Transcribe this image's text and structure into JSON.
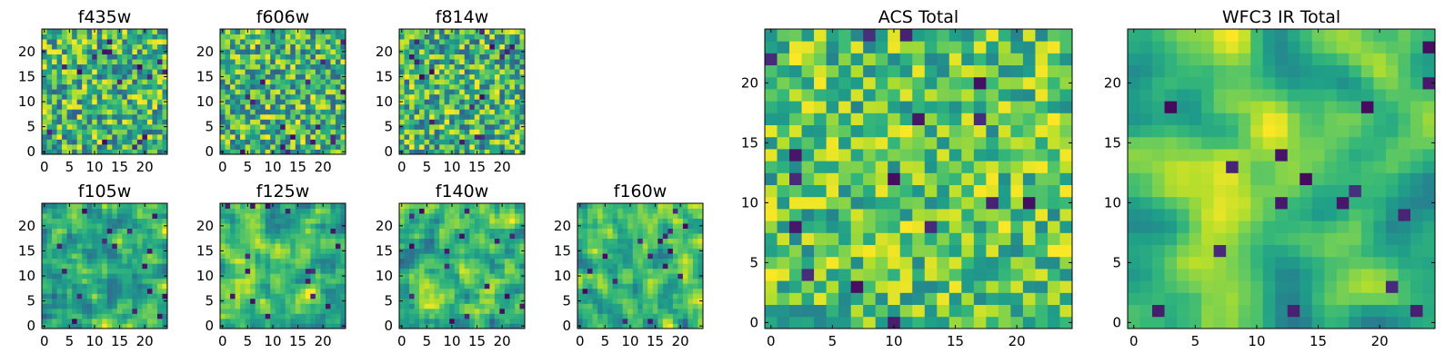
{
  "chart_data": [
    {
      "type": "heatmap",
      "title": "f435w",
      "x_ticks": [
        "0",
        "5",
        "10",
        "15",
        "20"
      ],
      "y_ticks": [
        "0",
        "5",
        "10",
        "15",
        "20"
      ],
      "xlim": [
        -0.5,
        24.5
      ],
      "ylim": [
        -0.5,
        24.5
      ],
      "grid": false,
      "rows": 25,
      "cols": 25,
      "seed": 11,
      "smooth": 0,
      "texture": "noise",
      "colormap": "viridis",
      "color_range": [
        0.3,
        1.0
      ]
    },
    {
      "type": "heatmap",
      "title": "f606w",
      "x_ticks": [
        "0",
        "5",
        "10",
        "15",
        "20"
      ],
      "y_ticks": [
        "0",
        "5",
        "10",
        "15",
        "20"
      ],
      "xlim": [
        -0.5,
        24.5
      ],
      "ylim": [
        -0.5,
        24.5
      ],
      "grid": false,
      "rows": 25,
      "cols": 25,
      "seed": 23,
      "smooth": 0,
      "texture": "noise",
      "colormap": "viridis",
      "color_range": [
        0.3,
        1.0
      ]
    },
    {
      "type": "heatmap",
      "title": "f814w",
      "x_ticks": [
        "0",
        "5",
        "10",
        "15",
        "20"
      ],
      "y_ticks": [
        "0",
        "5",
        "10",
        "15",
        "20"
      ],
      "xlim": [
        -0.5,
        24.5
      ],
      "ylim": [
        -0.5,
        24.5
      ],
      "grid": false,
      "rows": 25,
      "cols": 25,
      "seed": 37,
      "smooth": 0,
      "texture": "noise",
      "colormap": "viridis",
      "color_range": [
        0.3,
        1.0
      ]
    },
    {
      "type": "heatmap",
      "title": "f105w",
      "x_ticks": [
        "0",
        "5",
        "10",
        "15",
        "20"
      ],
      "y_ticks": [
        "0",
        "5",
        "10",
        "15",
        "20"
      ],
      "xlim": [
        -0.5,
        24.5
      ],
      "ylim": [
        -0.5,
        24.5
      ],
      "grid": false,
      "rows": 25,
      "cols": 25,
      "seed": 41,
      "smooth": 1,
      "texture": "smoothed-noise",
      "colormap": "viridis",
      "color_range": [
        0.3,
        1.0
      ]
    },
    {
      "type": "heatmap",
      "title": "f125w",
      "x_ticks": [
        "0",
        "5",
        "10",
        "15",
        "20"
      ],
      "y_ticks": [
        "0",
        "5",
        "10",
        "15",
        "20"
      ],
      "xlim": [
        -0.5,
        24.5
      ],
      "ylim": [
        -0.5,
        24.5
      ],
      "grid": false,
      "rows": 25,
      "cols": 25,
      "seed": 53,
      "smooth": 1,
      "texture": "smoothed-noise",
      "colormap": "viridis",
      "color_range": [
        0.3,
        1.0
      ]
    },
    {
      "type": "heatmap",
      "title": "f140w",
      "x_ticks": [
        "0",
        "5",
        "10",
        "15",
        "20"
      ],
      "y_ticks": [
        "0",
        "5",
        "10",
        "15",
        "20"
      ],
      "xlim": [
        -0.5,
        24.5
      ],
      "ylim": [
        -0.5,
        24.5
      ],
      "grid": false,
      "rows": 25,
      "cols": 25,
      "seed": 67,
      "smooth": 1,
      "texture": "smoothed-noise",
      "colormap": "viridis",
      "color_range": [
        0.3,
        1.0
      ]
    },
    {
      "type": "heatmap",
      "title": "f160w",
      "x_ticks": [
        "0",
        "5",
        "10",
        "15",
        "20"
      ],
      "y_ticks": [
        "0",
        "5",
        "10",
        "15",
        "20"
      ],
      "xlim": [
        -0.5,
        24.5
      ],
      "ylim": [
        -0.5,
        24.5
      ],
      "grid": false,
      "rows": 25,
      "cols": 25,
      "seed": 79,
      "smooth": 1,
      "texture": "smoothed-noise",
      "colormap": "viridis",
      "color_range": [
        0.3,
        1.0
      ]
    },
    {
      "type": "heatmap",
      "title": "ACS Total",
      "x_ticks": [
        "0",
        "5",
        "10",
        "15",
        "20"
      ],
      "y_ticks": [
        "0",
        "5",
        "10",
        "15",
        "20"
      ],
      "xlim": [
        -0.5,
        24.5
      ],
      "ylim": [
        -0.5,
        24.5
      ],
      "grid": false,
      "rows": 25,
      "cols": 25,
      "seed": 97,
      "smooth": 0,
      "texture": "noise",
      "colormap": "viridis",
      "color_range": [
        0.45,
        1.0
      ]
    },
    {
      "type": "heatmap",
      "title": "WFC3 IR Total",
      "x_ticks": [
        "0",
        "5",
        "10",
        "15",
        "20"
      ],
      "y_ticks": [
        "0",
        "5",
        "10",
        "15",
        "20"
      ],
      "xlim": [
        -0.5,
        24.5
      ],
      "ylim": [
        -0.5,
        24.5
      ],
      "grid": false,
      "rows": 25,
      "cols": 25,
      "seed": 101,
      "smooth": 2,
      "texture": "smoothed-noise-central-peak",
      "colormap": "viridis",
      "color_range": [
        0.4,
        1.0
      ]
    }
  ]
}
